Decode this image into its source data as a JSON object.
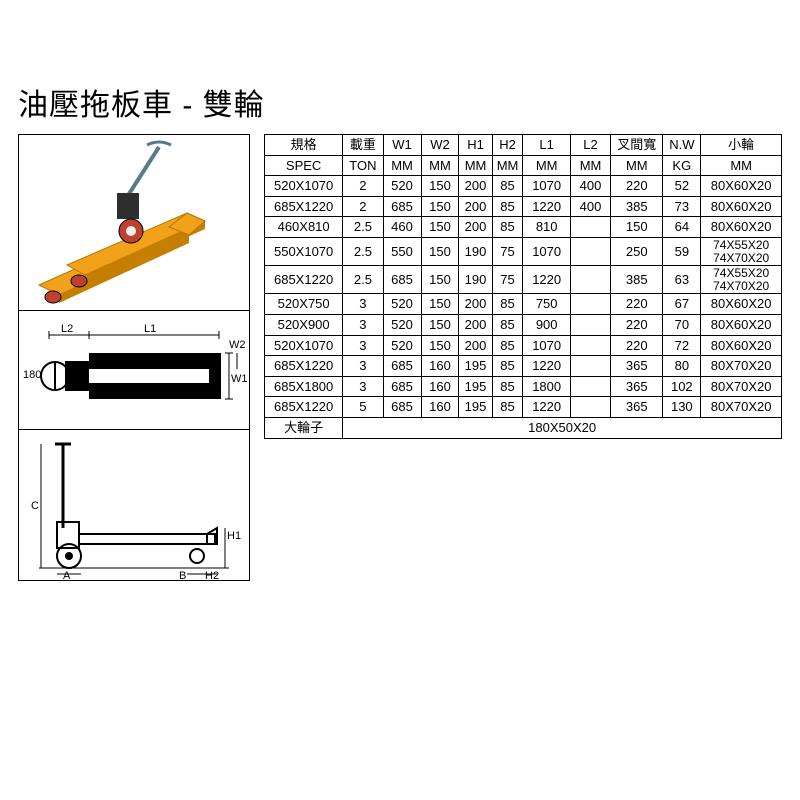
{
  "title": "油壓拖板車 - 雙輪",
  "table": {
    "header_zh": [
      "規格",
      "載重",
      "W1",
      "W2",
      "H1",
      "H2",
      "L1",
      "L2",
      "叉間寬",
      "N.W",
      "小輪"
    ],
    "header_en": [
      "SPEC",
      "TON",
      "MM",
      "MM",
      "MM",
      "MM",
      "MM",
      "MM",
      "MM",
      "KG",
      "MM"
    ],
    "rows": [
      {
        "spec": "520X1070",
        "ton": "2",
        "w1": "520",
        "w2": "150",
        "h1": "200",
        "h2": "85",
        "l1": "1070",
        "l2": "400",
        "fork": "220",
        "nw": "52",
        "wheel": "80X60X20"
      },
      {
        "spec": "685X1220",
        "ton": "2",
        "w1": "685",
        "w2": "150",
        "h1": "200",
        "h2": "85",
        "l1": "1220",
        "l2": "400",
        "fork": "385",
        "nw": "73",
        "wheel": "80X60X20"
      },
      {
        "spec": "460X810",
        "ton": "2.5",
        "w1": "460",
        "w2": "150",
        "h1": "200",
        "h2": "85",
        "l1": "810",
        "l2": "",
        "fork": "150",
        "nw": "64",
        "wheel": "80X60X20"
      },
      {
        "spec": "550X1070",
        "ton": "2.5",
        "w1": "550",
        "w2": "150",
        "h1": "190",
        "h2": "75",
        "l1": "1070",
        "l2": "",
        "fork": "250",
        "nw": "59",
        "wheel": "74X55X20\n74X70X20"
      },
      {
        "spec": "685X1220",
        "ton": "2.5",
        "w1": "685",
        "w2": "150",
        "h1": "190",
        "h2": "75",
        "l1": "1220",
        "l2": "",
        "fork": "385",
        "nw": "63",
        "wheel": "74X55X20\n74X70X20"
      },
      {
        "spec": "520X750",
        "ton": "3",
        "w1": "520",
        "w2": "150",
        "h1": "200",
        "h2": "85",
        "l1": "750",
        "l2": "",
        "fork": "220",
        "nw": "67",
        "wheel": "80X60X20"
      },
      {
        "spec": "520X900",
        "ton": "3",
        "w1": "520",
        "w2": "150",
        "h1": "200",
        "h2": "85",
        "l1": "900",
        "l2": "",
        "fork": "220",
        "nw": "70",
        "wheel": "80X60X20"
      },
      {
        "spec": "520X1070",
        "ton": "3",
        "w1": "520",
        "w2": "150",
        "h1": "200",
        "h2": "85",
        "l1": "1070",
        "l2": "",
        "fork": "220",
        "nw": "72",
        "wheel": "80X60X20"
      },
      {
        "spec": "685X1220",
        "ton": "3",
        "w1": "685",
        "w2": "160",
        "h1": "195",
        "h2": "85",
        "l1": "1220",
        "l2": "",
        "fork": "365",
        "nw": "80",
        "wheel": "80X70X20"
      },
      {
        "spec": "685X1800",
        "ton": "3",
        "w1": "685",
        "w2": "160",
        "h1": "195",
        "h2": "85",
        "l1": "1800",
        "l2": "",
        "fork": "365",
        "nw": "102",
        "wheel": "80X70X20"
      },
      {
        "spec": "685X1220",
        "ton": "5",
        "w1": "685",
        "w2": "160",
        "h1": "195",
        "h2": "85",
        "l1": "1220",
        "l2": "",
        "fork": "365",
        "nw": "130",
        "wheel": "80X70X20"
      }
    ],
    "big_wheel_label": "大輪子",
    "big_wheel_value": "180X50X20"
  },
  "diagram": {
    "top_labels": {
      "L2": "L2",
      "L1": "L1",
      "W1": "W1",
      "W2": "W2",
      "angle": "180"
    },
    "side_labels": {
      "C": "C",
      "A": "A",
      "B": "B",
      "H1": "H1",
      "H2": "H2"
    }
  },
  "colors": {
    "truck_body": "#f2a21a",
    "truck_dark": "#2e2e2e",
    "wheel_red": "#c04030",
    "line": "#000000",
    "bg": "#ffffff"
  }
}
